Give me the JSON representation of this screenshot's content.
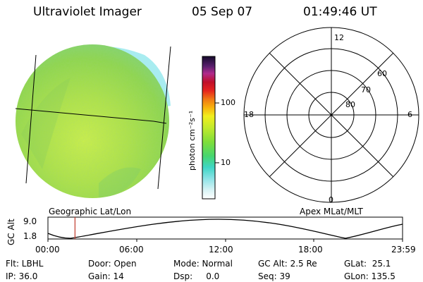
{
  "header": {
    "title": "Ultraviolet Imager",
    "date": "05 Sep 07",
    "time": "01:49:46 UT"
  },
  "colors": {
    "disk_green": "#93d84a",
    "disk_yellow": "#c6ec4a",
    "disk_cyan": "#7fe3d0",
    "timeline_marker": "#c0392b",
    "ink": "#000000"
  },
  "colorbar": {
    "unit": "photon cm⁻²s⁻¹",
    "ticks": [
      "100",
      "10"
    ],
    "tick_values": [
      100,
      10
    ],
    "scale": "log"
  },
  "geo_view": {
    "label": "Geographic Lat/Lon"
  },
  "polar_plot": {
    "label": "Apex MLat/MLT",
    "mlt_labels": [
      "12",
      "18",
      "6",
      "0"
    ],
    "mlat_labels": [
      "60",
      "70",
      "80"
    ]
  },
  "timeline": {
    "axis_label": "GC Alt",
    "y_ticks": [
      "9.0",
      "1.8"
    ],
    "time_ticks": [
      "00:00",
      "06:00",
      "12:00",
      "18:00",
      "23:59"
    ],
    "current_time_fraction": 0.0763
  },
  "info": {
    "flt": "Flt: LBHL",
    "ip": "IP: 36.0",
    "door": "Door: Open",
    "gain": "Gain: 14",
    "mode": "Mode: Normal",
    "dsp": "Dsp:     0.0",
    "gc_alt": "GC Alt: 2.5 Re",
    "seq": "Seq: 39",
    "glat": "GLat:  25.1",
    "glon": "GLon: 135.5"
  }
}
